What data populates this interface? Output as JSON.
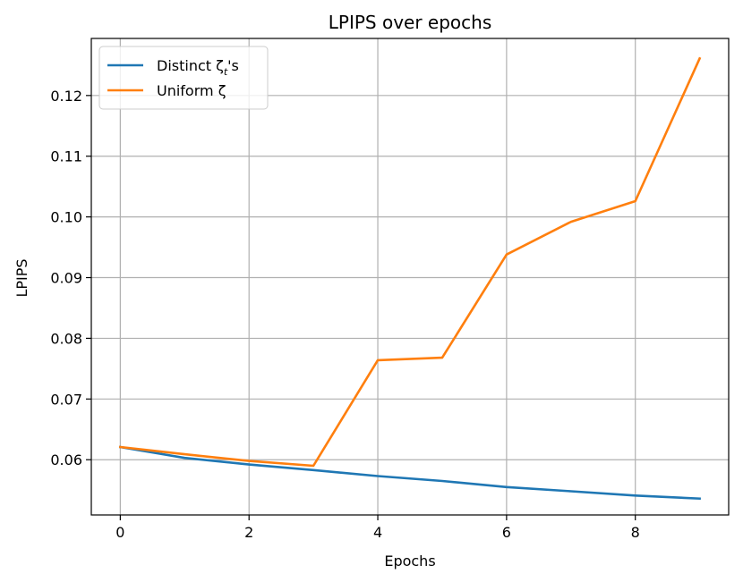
{
  "chart_data": {
    "type": "line",
    "title": "LPIPS over epochs",
    "xlabel": "Epochs",
    "ylabel": "LPIPS",
    "x": [
      0,
      1,
      2,
      3,
      4,
      5,
      6,
      7,
      8,
      9
    ],
    "xlim": [
      -0.45,
      9.45
    ],
    "ylim": [
      0.0509,
      0.1294
    ],
    "x_ticks": [
      0,
      2,
      4,
      6,
      8
    ],
    "y_ticks": [
      0.06,
      0.07,
      0.08,
      0.09,
      0.1,
      0.11,
      0.12
    ],
    "x_tick_labels": [
      "0",
      "2",
      "4",
      "6",
      "8"
    ],
    "y_tick_labels": [
      "0.06",
      "0.07",
      "0.08",
      "0.09",
      "0.10",
      "0.11",
      "0.12"
    ],
    "grid": true,
    "legend_position": "top-left",
    "series": [
      {
        "name": "Distinct ζt's",
        "legend": {
          "main": "Distinct ζ",
          "sub": "t",
          "suffix": "'s"
        },
        "color": "#1f77b4",
        "values": [
          0.0621,
          0.0603,
          0.0592,
          0.0583,
          0.0573,
          0.0565,
          0.0555,
          0.0548,
          0.0541,
          0.0536
        ]
      },
      {
        "name": "Uniform ζ",
        "legend": {
          "main": "Uniform ζ",
          "sub": "",
          "suffix": ""
        },
        "color": "#ff7f0e",
        "values": [
          0.0621,
          0.0609,
          0.0598,
          0.059,
          0.0764,
          0.0768,
          0.0938,
          0.0992,
          0.1026,
          0.1261
        ]
      }
    ]
  }
}
